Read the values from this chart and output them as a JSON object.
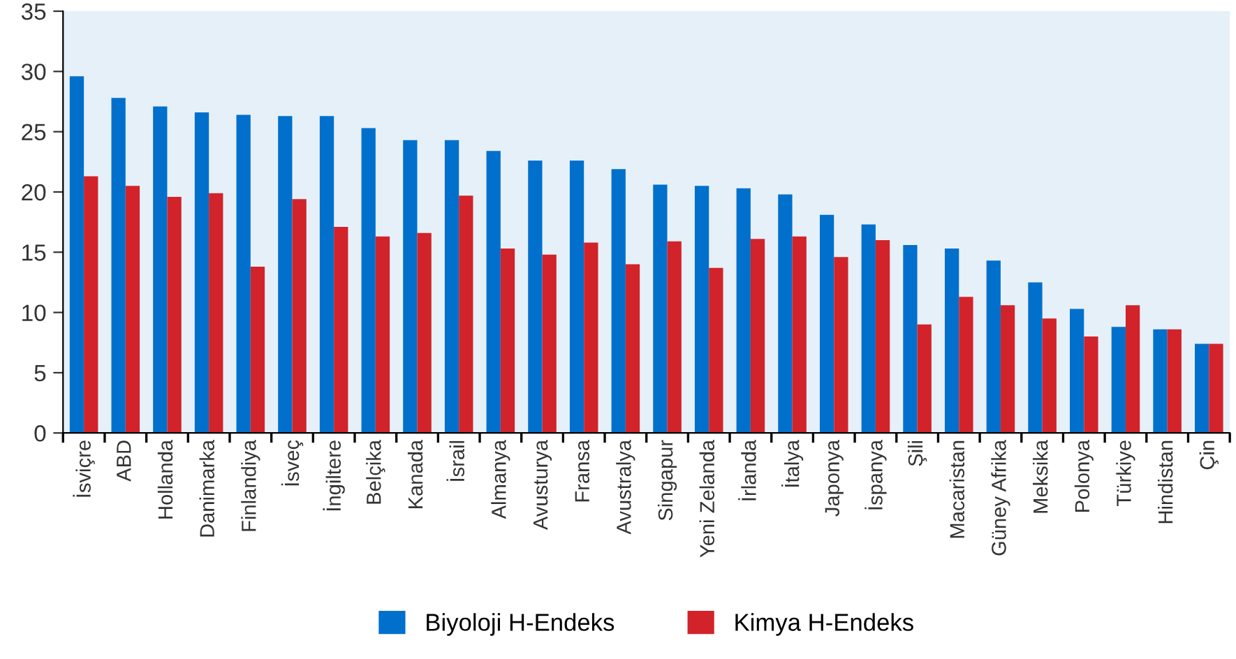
{
  "chart_data": {
    "type": "bar",
    "categories": [
      "İsviçre",
      "ABD",
      "Hollanda",
      "Danimarka",
      "Finlandiya",
      "İsveç",
      "İngiltere",
      "Belçika",
      "Kanada",
      "İsrail",
      "Almanya",
      "Avusturya",
      "Fransa",
      "Avustralya",
      "Singapur",
      "Yeni Zelanda",
      "İrlanda",
      "İtalya",
      "Japonya",
      "İspanya",
      "Şili",
      "Macaristan",
      "Güney Afrika",
      "Meksika",
      "Polonya",
      "Türkiye",
      "Hindistan",
      "Çin"
    ],
    "series": [
      {
        "name": "Biyoloji H-Endeks",
        "color": "#0070cc",
        "values": [
          29.6,
          27.8,
          27.1,
          26.6,
          26.4,
          26.3,
          26.3,
          25.3,
          24.3,
          24.3,
          23.4,
          22.6,
          22.6,
          21.9,
          20.6,
          20.5,
          20.3,
          19.8,
          18.1,
          17.3,
          15.6,
          15.3,
          14.3,
          12.5,
          10.3,
          8.8,
          8.6,
          7.4
        ]
      },
      {
        "name": "Kimya H-Endeks",
        "color": "#d2232a",
        "values": [
          21.3,
          20.5,
          19.6,
          19.9,
          13.8,
          19.4,
          17.1,
          16.3,
          16.6,
          19.7,
          15.3,
          14.8,
          15.8,
          14.0,
          15.9,
          13.7,
          16.1,
          16.3,
          14.6,
          16.0,
          9.0,
          11.3,
          10.6,
          9.5,
          8.0,
          10.6,
          8.6,
          7.4
        ]
      }
    ],
    "ylim": [
      0,
      35
    ],
    "yticks": [
      0,
      5,
      10,
      15,
      20,
      25,
      30,
      35
    ],
    "grid": false,
    "legend": "bottom"
  }
}
